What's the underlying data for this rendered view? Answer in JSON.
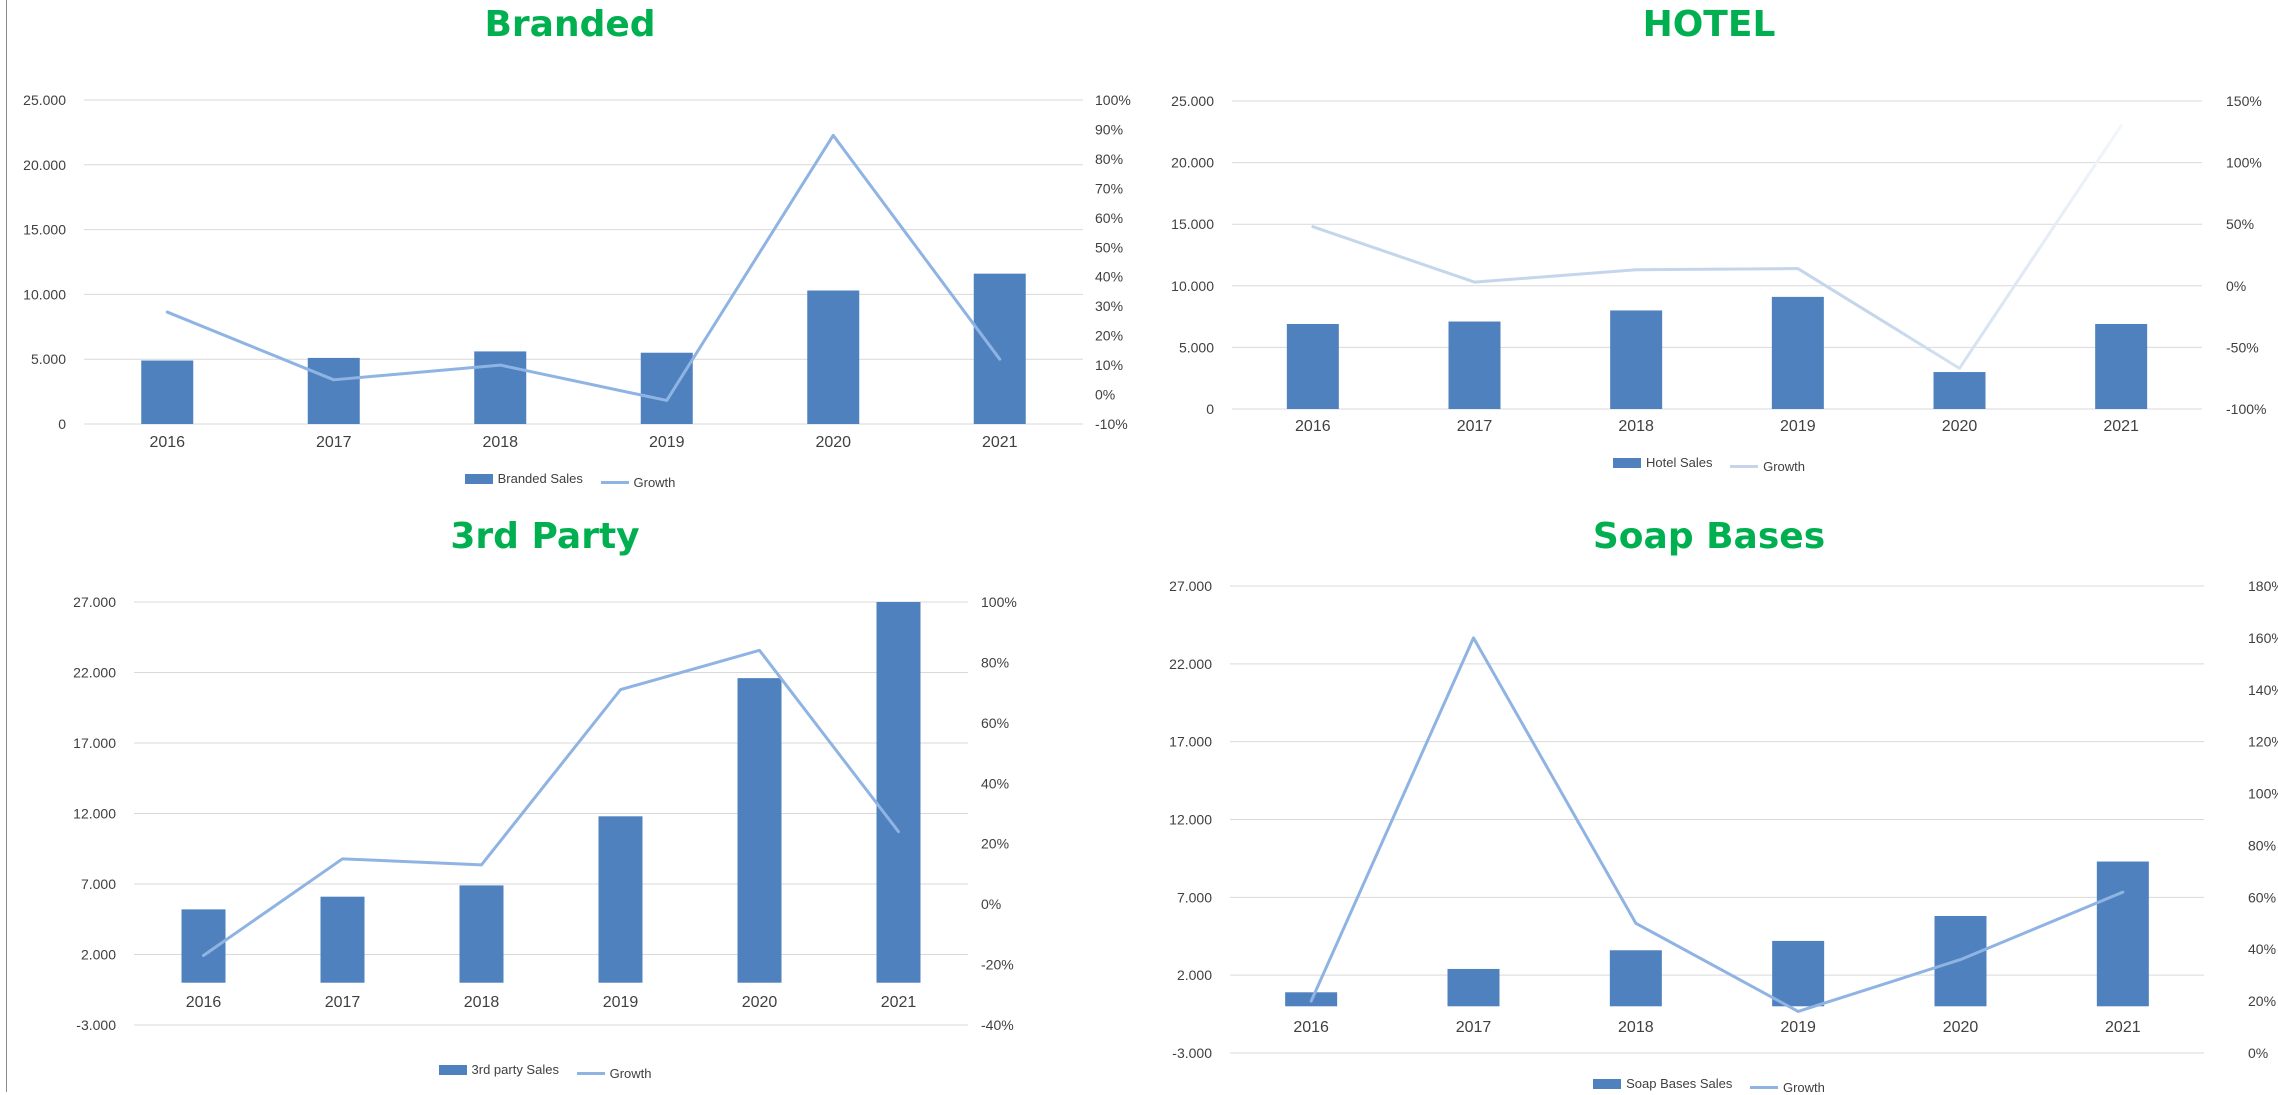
{
  "colors": {
    "title": "#00b050",
    "bar": "#4e81bd",
    "growth_line": "#8fb4e3",
    "growth_line_light": "#c5d6ec",
    "grid": "#d9d9d9",
    "tick_text": "#404040"
  },
  "chart_data": [
    {
      "type": "bar",
      "title": "Branded",
      "categories": [
        "2016",
        "2017",
        "2018",
        "2019",
        "2020",
        "2021"
      ],
      "series": [
        {
          "name": "Branded Sales",
          "type": "bar",
          "axis": "left",
          "values": [
            4900,
            5100,
            5600,
            5500,
            10300,
            11600
          ]
        },
        {
          "name": "Growth",
          "type": "line",
          "axis": "right",
          "values": [
            28,
            5,
            10,
            -2,
            88,
            12
          ]
        }
      ],
      "y_left": {
        "min": 0,
        "max": 25000,
        "ticks": [
          0,
          5000,
          10000,
          15000,
          20000,
          25000
        ],
        "tick_labels": [
          "0",
          "5.000",
          "10.000",
          "15.000",
          "20.000",
          "25.000"
        ]
      },
      "y_right": {
        "min": -10,
        "max": 100,
        "ticks": [
          -10,
          0,
          10,
          20,
          30,
          40,
          50,
          60,
          70,
          80,
          90,
          100
        ],
        "tick_labels": [
          "-10%",
          "0%",
          "10%",
          "20%",
          "30%",
          "40%",
          "50%",
          "60%",
          "70%",
          "80%",
          "90%",
          "100%"
        ]
      },
      "grid": true,
      "legend_position": "bottom"
    },
    {
      "type": "bar",
      "title": "HOTEL",
      "categories": [
        "2016",
        "2017",
        "2018",
        "2019",
        "2020",
        "2021"
      ],
      "series": [
        {
          "name": "Hotel Sales",
          "type": "bar",
          "axis": "left",
          "values": [
            6900,
            7100,
            8000,
            9100,
            3000,
            6900
          ]
        },
        {
          "name": "Growth",
          "type": "line",
          "axis": "right",
          "values": [
            48,
            3,
            13,
            14,
            -67,
            130
          ]
        }
      ],
      "y_left": {
        "min": 0,
        "max": 25000,
        "ticks": [
          0,
          5000,
          10000,
          15000,
          20000,
          25000
        ],
        "tick_labels": [
          "0",
          "5.000",
          "10.000",
          "15.000",
          "20.000",
          "25.000"
        ]
      },
      "y_right": {
        "min": -100,
        "max": 150,
        "ticks": [
          -100,
          -50,
          0,
          50,
          100,
          150
        ],
        "tick_labels": [
          "-100%",
          "-50%",
          "0%",
          "50%",
          "100%",
          "150%"
        ]
      },
      "grid": true,
      "legend_position": "bottom"
    },
    {
      "type": "bar",
      "title": "3rd Party",
      "categories": [
        "2016",
        "2017",
        "2018",
        "2019",
        "2020",
        "2021"
      ],
      "series": [
        {
          "name": "3rd party Sales",
          "type": "bar",
          "axis": "left",
          "values": [
            5200,
            6100,
            6900,
            11800,
            21600,
            27000
          ]
        },
        {
          "name": "Growth",
          "type": "line",
          "axis": "right",
          "values": [
            -17,
            15,
            13,
            71,
            84,
            24
          ]
        }
      ],
      "y_left": {
        "min": -3000,
        "max": 27000,
        "ticks": [
          -3000,
          2000,
          7000,
          12000,
          17000,
          22000,
          27000
        ],
        "tick_labels": [
          "-3.000",
          "2.000",
          "7.000",
          "12.000",
          "17.000",
          "22.000",
          "27.000"
        ]
      },
      "y_right": {
        "min": -40,
        "max": 100,
        "ticks": [
          -40,
          -20,
          0,
          20,
          40,
          60,
          80,
          100
        ],
        "tick_labels": [
          "-40%",
          "-20%",
          "0%",
          "20%",
          "40%",
          "60%",
          "80%",
          "100%"
        ]
      },
      "grid": true,
      "legend_position": "bottom"
    },
    {
      "type": "bar",
      "title": "Soap Bases",
      "categories": [
        "2016",
        "2017",
        "2018",
        "2019",
        "2020",
        "2021"
      ],
      "series": [
        {
          "name": "Soap Bases Sales",
          "type": "bar",
          "axis": "left",
          "values": [
            900,
            2400,
            3600,
            4200,
            5800,
            9300
          ]
        },
        {
          "name": "Growth",
          "type": "line",
          "axis": "right",
          "values": [
            20,
            160,
            50,
            16,
            36,
            62
          ]
        }
      ],
      "y_left": {
        "min": -3000,
        "max": 27000,
        "ticks": [
          -3000,
          2000,
          7000,
          12000,
          17000,
          22000,
          27000
        ],
        "tick_labels": [
          "-3.000",
          "2.000",
          "7.000",
          "12.000",
          "17.000",
          "22.000",
          "27.000"
        ]
      },
      "y_right": {
        "min": 0,
        "max": 180,
        "ticks": [
          0,
          20,
          40,
          60,
          80,
          100,
          120,
          140,
          160,
          180
        ],
        "tick_labels": [
          "0%",
          "20%",
          "40%",
          "60%",
          "80%",
          "100%",
          "120%",
          "140%",
          "160%",
          "180%"
        ]
      },
      "grid": true,
      "legend_position": "bottom"
    }
  ]
}
